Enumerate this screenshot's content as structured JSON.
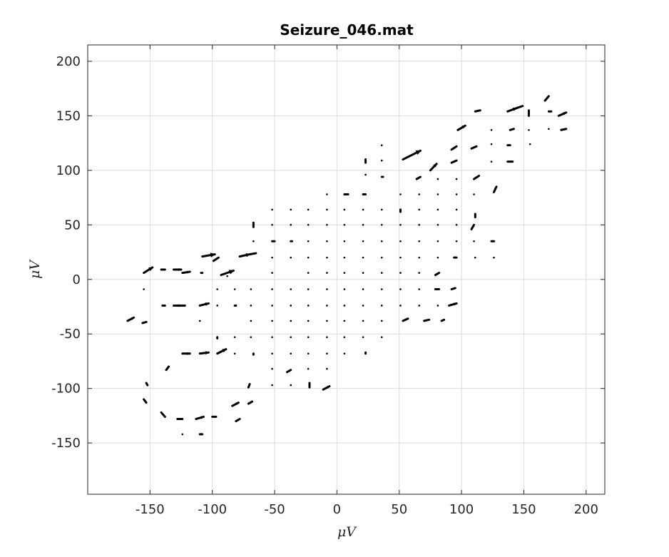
{
  "chart_data": {
    "type": "quiver",
    "title": "Seizure_046.mat",
    "xlabel": "μV",
    "ylabel": "μV",
    "xlim": [
      -200,
      215
    ],
    "ylim": [
      -197,
      215
    ],
    "xticks": [
      -150,
      -100,
      -50,
      0,
      50,
      100,
      150,
      200
    ],
    "yticks": [
      -150,
      -100,
      -50,
      0,
      50,
      100,
      150,
      200
    ],
    "xtick_labels": [
      "-150",
      "-100",
      "-50",
      "0",
      "50",
      "100",
      "150",
      "200"
    ],
    "ytick_labels": [
      "-150",
      "-100",
      "-50",
      "0",
      "50",
      "100",
      "150",
      "200"
    ],
    "grid": true,
    "color": "#000000",
    "vectors": [
      {
        "x": -168,
        "y": -38,
        "u": 5,
        "v": 3
      },
      {
        "x": -156,
        "y": -40,
        "u": 3,
        "v": 1
      },
      {
        "x": -155,
        "y": -9,
        "u": 0,
        "v": 0
      },
      {
        "x": -155,
        "y": 6,
        "u": 7,
        "v": 5
      },
      {
        "x": -141,
        "y": 9,
        "u": 3,
        "v": 0
      },
      {
        "x": -131,
        "y": 9,
        "u": 6,
        "v": 0
      },
      {
        "x": -140,
        "y": -24,
        "u": 2,
        "v": 0
      },
      {
        "x": -131,
        "y": -24,
        "u": 6,
        "v": 0
      },
      {
        "x": -124,
        "y": 6,
        "u": 6,
        "v": 1
      },
      {
        "x": -109,
        "y": 6,
        "u": 1,
        "v": 0
      },
      {
        "x": -108,
        "y": 21,
        "u": 10,
        "v": 2
      },
      {
        "x": -99,
        "y": 17,
        "u": 4,
        "v": 3
      },
      {
        "x": -93,
        "y": 4,
        "u": 10,
        "v": 4
      },
      {
        "x": -88,
        "y": 3,
        "u": 0,
        "v": 0
      },
      {
        "x": -78,
        "y": 21,
        "u": 8,
        "v": 2
      },
      {
        "x": -70,
        "y": 23,
        "u": 5,
        "v": 1
      },
      {
        "x": -124,
        "y": -24,
        "u": 2,
        "v": 0
      },
      {
        "x": -110,
        "y": -24,
        "u": 7,
        "v": 2
      },
      {
        "x": -110,
        "y": -38,
        "u": 0,
        "v": 0
      },
      {
        "x": -96,
        "y": -24,
        "u": 0,
        "v": 0
      },
      {
        "x": -96,
        "y": -9,
        "u": 0,
        "v": 0
      },
      {
        "x": -82,
        "y": -9,
        "u": 0,
        "v": 0
      },
      {
        "x": -82,
        "y": -24,
        "u": 1,
        "v": 0
      },
      {
        "x": -96,
        "y": -53,
        "u": 0,
        "v": -1
      },
      {
        "x": -82,
        "y": -53,
        "u": 0,
        "v": 0
      },
      {
        "x": -69,
        "y": -9,
        "u": 0,
        "v": 0
      },
      {
        "x": -69,
        "y": -24,
        "u": 0,
        "v": 0
      },
      {
        "x": -69,
        "y": -38,
        "u": 0,
        "v": 0
      },
      {
        "x": -69,
        "y": -53,
        "u": 0,
        "v": 0
      },
      {
        "x": -137,
        "y": -83,
        "u": 2,
        "v": 3
      },
      {
        "x": -124,
        "y": -68,
        "u": 6,
        "v": 0
      },
      {
        "x": -110,
        "y": -68,
        "u": 7,
        "v": 1
      },
      {
        "x": -96,
        "y": -68,
        "u": 7,
        "v": 4
      },
      {
        "x": -82,
        "y": -68,
        "u": 0,
        "v": 0
      },
      {
        "x": -67,
        "y": -68,
        "u": 0,
        "v": -1
      },
      {
        "x": -152,
        "y": -97,
        "u": -1,
        "v": 2
      },
      {
        "x": -155,
        "y": -110,
        "u": 2,
        "v": -3
      },
      {
        "x": -141,
        "y": -122,
        "u": 3,
        "v": -4
      },
      {
        "x": -128,
        "y": -128,
        "u": 4,
        "v": 0
      },
      {
        "x": -113,
        "y": -128,
        "u": 6,
        "v": 2
      },
      {
        "x": -100,
        "y": -126,
        "u": 3,
        "v": 0
      },
      {
        "x": -84,
        "y": -116,
        "u": 5,
        "v": 3
      },
      {
        "x": -81,
        "y": -130,
        "u": 3,
        "v": 2
      },
      {
        "x": -71,
        "y": -114,
        "u": 3,
        "v": 2
      },
      {
        "x": -71,
        "y": -99,
        "u": 1,
        "v": 3
      },
      {
        "x": -124,
        "y": -142,
        "u": 0,
        "v": 0
      },
      {
        "x": -110,
        "y": -142,
        "u": 2,
        "v": 0
      },
      {
        "x": -67,
        "y": 48,
        "u": 0,
        "v": 4
      },
      {
        "x": -67,
        "y": 35,
        "u": 0,
        "v": 0
      },
      {
        "x": -52,
        "y": 64,
        "u": 0,
        "v": 0
      },
      {
        "x": -52,
        "y": 50,
        "u": 0,
        "v": 0
      },
      {
        "x": -52,
        "y": 35,
        "u": 2,
        "v": 0
      },
      {
        "x": -52,
        "y": 20,
        "u": 0,
        "v": 0
      },
      {
        "x": -52,
        "y": 6,
        "u": 0,
        "v": 0
      },
      {
        "x": -52,
        "y": -9,
        "u": 0,
        "v": 0
      },
      {
        "x": -52,
        "y": -24,
        "u": 0,
        "v": 0
      },
      {
        "x": -52,
        "y": -38,
        "u": 0,
        "v": 0
      },
      {
        "x": -52,
        "y": -53,
        "u": 0,
        "v": 0
      },
      {
        "x": -52,
        "y": -68,
        "u": 0,
        "v": 0
      },
      {
        "x": -52,
        "y": -82,
        "u": 0,
        "v": 0
      },
      {
        "x": -52,
        "y": -97,
        "u": 0,
        "v": 0
      },
      {
        "x": -37,
        "y": 64,
        "u": 0,
        "v": 0
      },
      {
        "x": -37,
        "y": 50,
        "u": 0,
        "v": 0
      },
      {
        "x": -37,
        "y": 35,
        "u": 1,
        "v": 0
      },
      {
        "x": -37,
        "y": 20,
        "u": 0,
        "v": 0
      },
      {
        "x": -37,
        "y": -9,
        "u": 0,
        "v": 0
      },
      {
        "x": -37,
        "y": -24,
        "u": 0,
        "v": 0
      },
      {
        "x": -37,
        "y": -38,
        "u": 0,
        "v": 0
      },
      {
        "x": -37,
        "y": -53,
        "u": 0,
        "v": 0
      },
      {
        "x": -37,
        "y": -68,
        "u": 0,
        "v": 0
      },
      {
        "x": -40,
        "y": -85,
        "u": 3,
        "v": 2
      },
      {
        "x": -37,
        "y": -97,
        "u": 0,
        "v": 0
      },
      {
        "x": -23,
        "y": 64,
        "u": 0,
        "v": 0
      },
      {
        "x": -23,
        "y": 50,
        "u": 0,
        "v": 0
      },
      {
        "x": -23,
        "y": 35,
        "u": 0,
        "v": 0
      },
      {
        "x": -23,
        "y": 20,
        "u": 0,
        "v": 0
      },
      {
        "x": -23,
        "y": 6,
        "u": 0,
        "v": 0
      },
      {
        "x": -23,
        "y": -9,
        "u": 0,
        "v": 0
      },
      {
        "x": -23,
        "y": -24,
        "u": 0,
        "v": 0
      },
      {
        "x": -23,
        "y": -38,
        "u": 0,
        "v": 0
      },
      {
        "x": -23,
        "y": -53,
        "u": 0,
        "v": 0
      },
      {
        "x": -23,
        "y": -68,
        "u": 0,
        "v": 0
      },
      {
        "x": -23,
        "y": -82,
        "u": 0,
        "v": 0
      },
      {
        "x": -22,
        "y": -99,
        "u": 0,
        "v": 4
      },
      {
        "x": -8,
        "y": 78,
        "u": 0,
        "v": 0
      },
      {
        "x": -8,
        "y": 64,
        "u": 0,
        "v": 0
      },
      {
        "x": -8,
        "y": 50,
        "u": 0,
        "v": 0
      },
      {
        "x": -8,
        "y": 35,
        "u": 0,
        "v": 0
      },
      {
        "x": -8,
        "y": 20,
        "u": 0,
        "v": 0
      },
      {
        "x": -8,
        "y": 6,
        "u": 0,
        "v": 0
      },
      {
        "x": -8,
        "y": -9,
        "u": 0,
        "v": 0
      },
      {
        "x": -8,
        "y": -24,
        "u": 0,
        "v": 0
      },
      {
        "x": -8,
        "y": -38,
        "u": 0,
        "v": 0
      },
      {
        "x": -8,
        "y": -53,
        "u": 0,
        "v": 0
      },
      {
        "x": -8,
        "y": -68,
        "u": 0,
        "v": 0
      },
      {
        "x": -8,
        "y": -82,
        "u": 0,
        "v": 0
      },
      {
        "x": -11,
        "y": -101,
        "u": 5,
        "v": 3
      },
      {
        "x": 6,
        "y": 78,
        "u": 3,
        "v": 0
      },
      {
        "x": 6,
        "y": 64,
        "u": 0,
        "v": 0
      },
      {
        "x": 6,
        "y": 50,
        "u": 0,
        "v": 0
      },
      {
        "x": 6,
        "y": 35,
        "u": 0,
        "v": 0
      },
      {
        "x": 6,
        "y": 20,
        "u": 0,
        "v": 0
      },
      {
        "x": 6,
        "y": 6,
        "u": 0,
        "v": 0
      },
      {
        "x": 6,
        "y": -9,
        "u": 0,
        "v": 0
      },
      {
        "x": 6,
        "y": -24,
        "u": 0,
        "v": 0
      },
      {
        "x": 6,
        "y": -38,
        "u": 0,
        "v": 0
      },
      {
        "x": 6,
        "y": -53,
        "u": 0,
        "v": 0
      },
      {
        "x": 6,
        "y": -68,
        "u": 0,
        "v": 0
      },
      {
        "x": 21,
        "y": 78,
        "u": 2,
        "v": 0
      },
      {
        "x": 21,
        "y": 64,
        "u": 0,
        "v": 0
      },
      {
        "x": 21,
        "y": 50,
        "u": 0,
        "v": 0
      },
      {
        "x": 21,
        "y": 35,
        "u": 0,
        "v": 0
      },
      {
        "x": 21,
        "y": 20,
        "u": 0,
        "v": 0
      },
      {
        "x": 21,
        "y": 6,
        "u": 0,
        "v": 0
      },
      {
        "x": 21,
        "y": -9,
        "u": 0,
        "v": 0
      },
      {
        "x": 21,
        "y": -24,
        "u": 0,
        "v": 0
      },
      {
        "x": 21,
        "y": -38,
        "u": 0,
        "v": 0
      },
      {
        "x": 21,
        "y": -53,
        "u": 0,
        "v": 0
      },
      {
        "x": 23,
        "y": -68,
        "u": 0,
        "v": 1
      },
      {
        "x": 23,
        "y": 107,
        "u": 0,
        "v": 3
      },
      {
        "x": 23,
        "y": 96,
        "u": 0,
        "v": 0
      },
      {
        "x": 36,
        "y": 123,
        "u": 0,
        "v": 0
      },
      {
        "x": 36,
        "y": 109,
        "u": 0,
        "v": 0
      },
      {
        "x": 36,
        "y": 94,
        "u": 1,
        "v": 0
      },
      {
        "x": 36,
        "y": 64,
        "u": 0,
        "v": 0
      },
      {
        "x": 36,
        "y": 50,
        "u": 0,
        "v": 0
      },
      {
        "x": 36,
        "y": 35,
        "u": 0,
        "v": 0
      },
      {
        "x": 36,
        "y": 20,
        "u": 0,
        "v": 0
      },
      {
        "x": 36,
        "y": 6,
        "u": 0,
        "v": 0
      },
      {
        "x": 36,
        "y": -9,
        "u": 0,
        "v": 0
      },
      {
        "x": 36,
        "y": -24,
        "u": 0,
        "v": 0
      },
      {
        "x": 36,
        "y": -38,
        "u": 0,
        "v": 0
      },
      {
        "x": 36,
        "y": -53,
        "u": 0,
        "v": 0
      },
      {
        "x": 53,
        "y": 110,
        "u": 14,
        "v": 8
      },
      {
        "x": 51,
        "y": 78,
        "u": 0,
        "v": 0
      },
      {
        "x": 51,
        "y": 64,
        "u": 0,
        "v": -2
      },
      {
        "x": 51,
        "y": 50,
        "u": 0,
        "v": 0
      },
      {
        "x": 51,
        "y": 35,
        "u": 0,
        "v": 0
      },
      {
        "x": 51,
        "y": 20,
        "u": 0,
        "v": 0
      },
      {
        "x": 51,
        "y": 6,
        "u": 0,
        "v": 0
      },
      {
        "x": 51,
        "y": -9,
        "u": 0,
        "v": 0
      },
      {
        "x": 51,
        "y": -24,
        "u": 0,
        "v": 0
      },
      {
        "x": 53,
        "y": -38,
        "u": 4,
        "v": 2
      },
      {
        "x": 64,
        "y": 92,
        "u": 3,
        "v": 2
      },
      {
        "x": 66,
        "y": 78,
        "u": 0,
        "v": 0
      },
      {
        "x": 66,
        "y": 64,
        "u": 0,
        "v": 0
      },
      {
        "x": 66,
        "y": 50,
        "u": 0,
        "v": 0
      },
      {
        "x": 66,
        "y": 35,
        "u": 0,
        "v": 0
      },
      {
        "x": 66,
        "y": 20,
        "u": 0,
        "v": 0
      },
      {
        "x": 66,
        "y": 6,
        "u": 0,
        "v": 0
      },
      {
        "x": 66,
        "y": -9,
        "u": 0,
        "v": 0
      },
      {
        "x": 66,
        "y": -24,
        "u": 0,
        "v": 0
      },
      {
        "x": 70,
        "y": -38,
        "u": 4,
        "v": 1
      },
      {
        "x": 75,
        "y": 100,
        "u": 5,
        "v": 6
      },
      {
        "x": 81,
        "y": 92,
        "u": 0,
        "v": 0
      },
      {
        "x": 81,
        "y": 78,
        "u": 0,
        "v": 0
      },
      {
        "x": 81,
        "y": 64,
        "u": 0,
        "v": 0
      },
      {
        "x": 81,
        "y": 50,
        "u": 0,
        "v": 0
      },
      {
        "x": 81,
        "y": 35,
        "u": 0,
        "v": 0
      },
      {
        "x": 81,
        "y": 20,
        "u": 0,
        "v": 0
      },
      {
        "x": 79,
        "y": 4,
        "u": 3,
        "v": 2
      },
      {
        "x": 79,
        "y": -9,
        "u": 3,
        "v": 0
      },
      {
        "x": 81,
        "y": -24,
        "u": 0,
        "v": 0
      },
      {
        "x": 84,
        "y": -38,
        "u": 2,
        "v": 1
      },
      {
        "x": 92,
        "y": 107,
        "u": 4,
        "v": 2
      },
      {
        "x": 92,
        "y": 119,
        "u": 4,
        "v": 3
      },
      {
        "x": 96,
        "y": 92,
        "u": 0,
        "v": 0
      },
      {
        "x": 96,
        "y": 78,
        "u": 0,
        "v": 0
      },
      {
        "x": 96,
        "y": 64,
        "u": 0,
        "v": 0
      },
      {
        "x": 96,
        "y": 50,
        "u": 0,
        "v": 0
      },
      {
        "x": 96,
        "y": 35,
        "u": 0,
        "v": 0
      },
      {
        "x": 94,
        "y": 20,
        "u": 2,
        "v": 0
      },
      {
        "x": 92,
        "y": -9,
        "u": 3,
        "v": 1
      },
      {
        "x": 90,
        "y": -24,
        "u": 6,
        "v": 2
      },
      {
        "x": 97,
        "y": 137,
        "u": 6,
        "v": 4
      },
      {
        "x": 108,
        "y": 120,
        "u": 4,
        "v": 2
      },
      {
        "x": 110,
        "y": 92,
        "u": 4,
        "v": 3
      },
      {
        "x": 110,
        "y": 78,
        "u": 0,
        "v": 0
      },
      {
        "x": 111,
        "y": 60,
        "u": 0,
        "v": -3
      },
      {
        "x": 108,
        "y": 46,
        "u": 2,
        "v": 4
      },
      {
        "x": 110,
        "y": 35,
        "u": 0,
        "v": 0
      },
      {
        "x": 111,
        "y": 20,
        "u": 0,
        "v": 0
      },
      {
        "x": 111,
        "y": 154,
        "u": 4,
        "v": 1
      },
      {
        "x": 124,
        "y": 137,
        "u": 0,
        "v": 0
      },
      {
        "x": 124,
        "y": 124,
        "u": 0,
        "v": 0
      },
      {
        "x": 124,
        "y": 108,
        "u": 0,
        "v": 0
      },
      {
        "x": 126,
        "y": 80,
        "u": 2,
        "v": 5
      },
      {
        "x": 124,
        "y": 35,
        "u": 2,
        "v": 0
      },
      {
        "x": 126,
        "y": 20,
        "u": 0,
        "v": 0
      },
      {
        "x": 137,
        "y": 154,
        "u": 7,
        "v": 3
      },
      {
        "x": 139,
        "y": 137,
        "u": 3,
        "v": 1
      },
      {
        "x": 137,
        "y": 123,
        "u": 2,
        "v": 0
      },
      {
        "x": 137,
        "y": 108,
        "u": 4,
        "v": 0
      },
      {
        "x": 144,
        "y": 157,
        "u": 5,
        "v": 2
      },
      {
        "x": 154,
        "y": 150,
        "u": 0,
        "v": 5
      },
      {
        "x": 154,
        "y": 137,
        "u": 0,
        "v": 0
      },
      {
        "x": 155,
        "y": 124,
        "u": 0,
        "v": 0
      },
      {
        "x": 167,
        "y": 164,
        "u": 3,
        "v": 4
      },
      {
        "x": 170,
        "y": 154,
        "u": 2,
        "v": 0
      },
      {
        "x": 170,
        "y": 138,
        "u": 0,
        "v": 0
      },
      {
        "x": 178,
        "y": 150,
        "u": 6,
        "v": 3
      },
      {
        "x": 180,
        "y": 137,
        "u": 4,
        "v": 1
      }
    ]
  }
}
